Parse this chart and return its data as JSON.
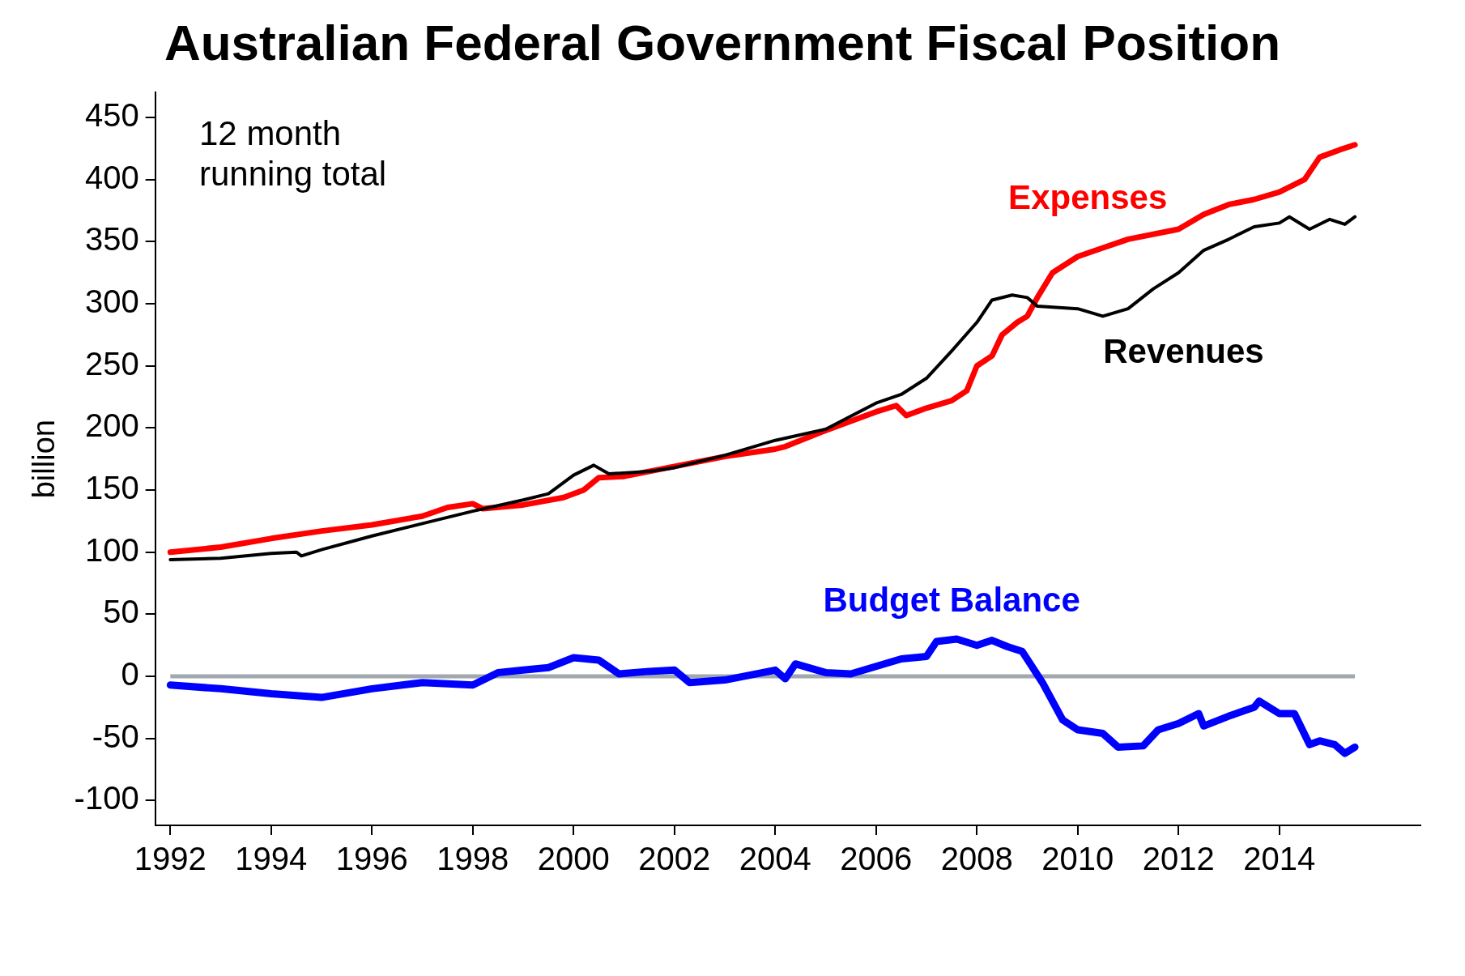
{
  "chart_data": {
    "type": "line",
    "title": "Australian Federal Government Fiscal Position",
    "ylabel": "billion",
    "annotations": [
      "12 month running total"
    ],
    "xlim": [
      1991.7,
      2016.8
    ],
    "xticks": [
      1992,
      1994,
      1996,
      1998,
      2000,
      2002,
      2004,
      2006,
      2008,
      2010,
      2012,
      2014
    ],
    "ylim": [
      -120,
      470
    ],
    "yticks": [
      -100,
      -50,
      0,
      50,
      100,
      150,
      200,
      250,
      300,
      350,
      400,
      450
    ],
    "grid": false,
    "legend": false,
    "marker": "none",
    "line_style": "solid",
    "ref_lines": [
      {
        "axis": "y",
        "value": 0,
        "color": "#a0a8b0"
      }
    ],
    "series": [
      {
        "name": "Expenses",
        "color": "#ff0000",
        "x": [
          1992,
          1993,
          1994,
          1995,
          1996,
          1997,
          1997.5,
          1998,
          1998.2,
          1999,
          1999.8,
          2000.2,
          2000.5,
          2001,
          2002,
          2003,
          2004,
          2004.2,
          2005,
          2006,
          2006.4,
          2006.6,
          2007,
          2007.5,
          2007.8,
          2008,
          2008.3,
          2008.5,
          2008.8,
          2009,
          2009.2,
          2009.5,
          2010,
          2010.5,
          2011,
          2012,
          2012.5,
          2013,
          2013.5,
          2014,
          2014.5,
          2014.8,
          2015.2,
          2015.5
        ],
        "values": [
          100,
          104,
          111,
          117,
          122,
          129,
          136,
          139,
          135,
          138,
          144,
          150,
          160,
          161,
          169,
          177,
          183,
          185,
          198,
          213,
          218,
          210,
          216,
          222,
          230,
          250,
          258,
          275,
          285,
          290,
          305,
          325,
          338,
          345,
          352,
          360,
          372,
          380,
          384,
          390,
          400,
          418,
          424,
          428
        ]
      },
      {
        "name": "Revenues",
        "color": "#000000",
        "x": [
          1992,
          1993,
          1994,
          1994.5,
          1994.6,
          1995,
          1996,
          1997,
          1998,
          1999,
          1999.5,
          2000,
          2000.4,
          2000.7,
          2001.5,
          2002,
          2003,
          2004,
          2005,
          2006,
          2006.5,
          2007,
          2007.5,
          2008,
          2008.3,
          2008.7,
          2009,
          2009.2,
          2010,
          2010.5,
          2011,
          2011.5,
          2012,
          2012.5,
          2013,
          2013.5,
          2014,
          2014.2,
          2014.6,
          2015,
          2015.3,
          2015.5
        ],
        "values": [
          94,
          95,
          99,
          100,
          97,
          102,
          113,
          123,
          133,
          142,
          147,
          162,
          170,
          163,
          165,
          168,
          178,
          190,
          199,
          220,
          227,
          240,
          262,
          285,
          303,
          307,
          305,
          298,
          296,
          290,
          296,
          312,
          325,
          343,
          352,
          362,
          365,
          370,
          360,
          368,
          364,
          370
        ]
      },
      {
        "name": "Budget Balance",
        "color": "#0000ff",
        "x": [
          1992,
          1993,
          1994,
          1995,
          1996,
          1997,
          1998,
          1998.5,
          1999,
          1999.5,
          2000,
          2000.5,
          2000.9,
          2001.5,
          2002,
          2002.3,
          2003,
          2004,
          2004.2,
          2004.4,
          2005,
          2005.5,
          2006,
          2006.5,
          2007,
          2007.2,
          2007.6,
          2008,
          2008.3,
          2008.6,
          2008.9,
          2009.3,
          2009.7,
          2010,
          2010.5,
          2010.8,
          2011.3,
          2011.6,
          2012,
          2012.4,
          2012.5,
          2013,
          2013.5,
          2013.6,
          2014,
          2014.3,
          2014.6,
          2014.8,
          2015.1,
          2015.3,
          2015.5
        ],
        "values": [
          -7,
          -10,
          -14,
          -17,
          -10,
          -5,
          -7,
          3,
          5,
          7,
          15,
          13,
          2,
          4,
          5,
          -5,
          -3,
          5,
          -2,
          10,
          3,
          2,
          8,
          14,
          16,
          28,
          30,
          25,
          29,
          24,
          20,
          -5,
          -35,
          -43,
          -46,
          -57,
          -56,
          -43,
          -38,
          -30,
          -40,
          -32,
          -25,
          -20,
          -30,
          -30,
          -55,
          -52,
          -55,
          -62,
          -57
        ]
      }
    ]
  }
}
